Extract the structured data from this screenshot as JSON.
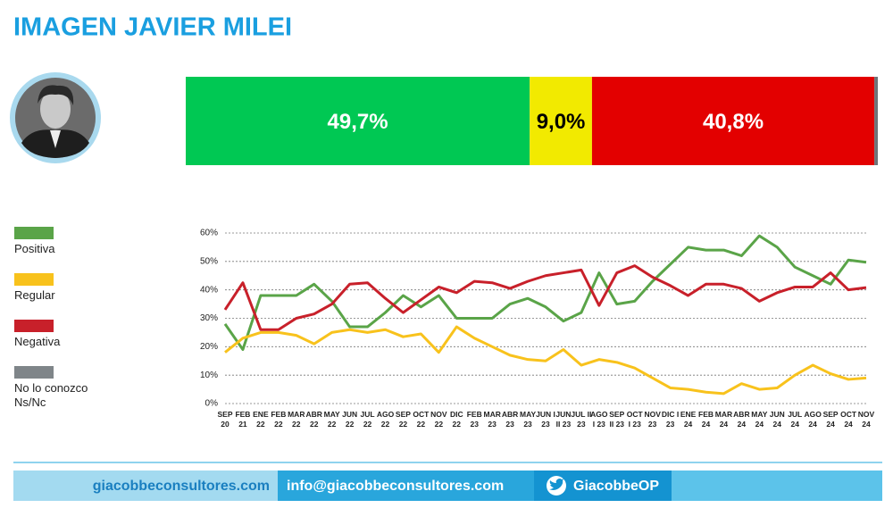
{
  "title": "IMAGEN JAVIER MILEI",
  "chart_data": [
    {
      "type": "stacked-hbar",
      "xlim": [
        0,
        100
      ],
      "series": [
        {
          "color": "#00c853",
          "label_color": "#ffffff",
          "values": [
            49.7
          ],
          "value_labels": [
            "49,7%"
          ]
        },
        {
          "color": "#f2ea00",
          "label_color": "#000000",
          "values": [
            9.0
          ],
          "value_labels": [
            "9,0%"
          ]
        },
        {
          "color": "#e30000",
          "label_color": "#ffffff",
          "values": [
            40.8
          ],
          "value_labels": [
            "40,8%"
          ]
        },
        {
          "color": "#6d7378",
          "values": [
            0.5
          ]
        }
      ]
    },
    {
      "type": "line",
      "grid": true,
      "categories": [
        "SEP\n20",
        "FEB\n21",
        "ENE\n22",
        "FEB\n22",
        "MAR\n22",
        "ABR\n22",
        "MAY\n22",
        "JUN\n22",
        "JUL\n22",
        "AGO\n22",
        "SEP\n22",
        "OCT\n22",
        "NOV\n22",
        "DIC\n22",
        "FEB\n23",
        "MAR\n23",
        "ABR\n23",
        "MAY\n23",
        "JUN I\n23",
        "JUN\nII 23",
        "JUL II\n23",
        "AGO\nI 23",
        "SEP\nII 23",
        "OCT\nI 23",
        "NOV\n23",
        "DIC I\n23",
        "ENE\n24",
        "FEB\n24",
        "MAR\n24",
        "ABR\n24",
        "MAY\n24",
        "JUN\n24",
        "JUL\n24",
        "AGO\n24",
        "SEP\n24",
        "OCT\n24",
        "NOV\n24"
      ],
      "ylim": [
        0,
        60
      ],
      "yticks": [
        {
          "value": 0,
          "label": "0%"
        },
        {
          "value": 10,
          "label": "10%"
        },
        {
          "value": 20,
          "label": "20%"
        },
        {
          "value": 30,
          "label": "30%"
        },
        {
          "value": 40,
          "label": "40%"
        },
        {
          "value": 50,
          "label": "50%"
        },
        {
          "value": 60,
          "label": "60%"
        }
      ],
      "series": [
        {
          "name": "Positiva",
          "color": "#5aa448",
          "values": [
            28,
            19,
            38,
            38,
            38,
            42,
            36,
            27,
            27,
            32,
            38,
            34,
            38,
            30,
            30,
            30,
            35,
            37,
            34,
            29,
            32,
            46,
            35,
            36,
            43,
            49,
            55,
            54,
            54,
            52,
            59,
            55,
            48,
            45,
            42,
            50.5,
            49.7
          ]
        },
        {
          "name": "Regular",
          "color": "#f8c21c",
          "values": [
            18,
            23,
            25,
            25,
            24,
            21,
            25,
            26,
            25,
            26,
            23.5,
            24.5,
            18,
            27,
            23,
            20,
            17,
            15.5,
            15,
            19,
            13.5,
            15.5,
            14.5,
            12.5,
            9,
            5.5,
            5,
            4,
            3.5,
            7,
            5,
            5.5,
            10,
            13.5,
            10.5,
            8.5,
            9
          ]
        },
        {
          "name": "Negativa",
          "color": "#c8202a",
          "values": [
            33,
            42.5,
            26,
            26,
            30,
            31.5,
            35,
            42,
            42.5,
            37,
            32,
            36.5,
            41,
            39,
            43,
            42.5,
            40.5,
            43,
            45,
            46,
            47,
            34.5,
            46,
            48.5,
            44.5,
            41.5,
            38,
            42,
            42,
            40.5,
            36,
            39,
            41,
            41,
            46,
            40,
            40.8
          ]
        },
        {
          "name": "No lo conozco\nNs/Nc",
          "color": "#7f8589",
          "values": [
            null,
            null,
            null,
            null,
            null,
            null,
            null,
            null,
            null,
            null,
            null,
            null,
            null,
            null,
            null,
            null,
            null,
            null,
            null,
            null,
            null,
            null,
            null,
            null,
            null,
            null,
            null,
            null,
            null,
            null,
            null,
            null,
            null,
            null,
            null,
            null,
            null
          ]
        }
      ]
    }
  ],
  "footer": {
    "website": "giacobbeconsultores.com",
    "email": "info@giacobbeconsultores.com",
    "twitter": "GiacobbeOP"
  }
}
